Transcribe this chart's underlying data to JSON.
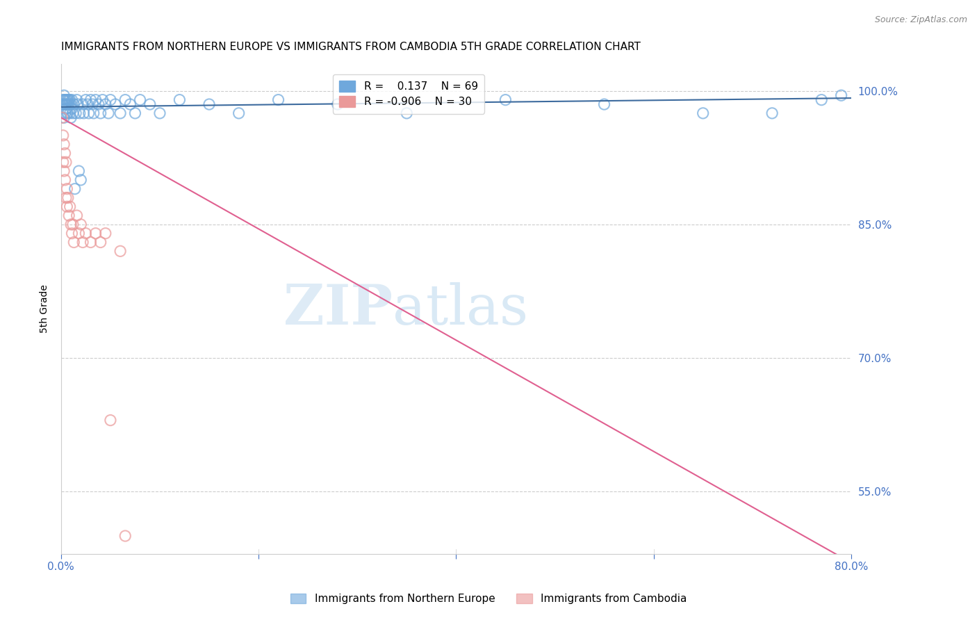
{
  "title": "IMMIGRANTS FROM NORTHERN EUROPE VS IMMIGRANTS FROM CAMBODIA 5TH GRADE CORRELATION CHART",
  "source": "Source: ZipAtlas.com",
  "ylabel": "5th Grade",
  "ytick_labels": [
    "100.0%",
    "85.0%",
    "70.0%",
    "55.0%"
  ],
  "ytick_values": [
    1.0,
    0.85,
    0.7,
    0.55
  ],
  "xmin": 0.0,
  "xmax": 0.8,
  "ymin": 0.48,
  "ymax": 1.03,
  "blue_R": 0.137,
  "blue_N": 69,
  "pink_R": -0.906,
  "pink_N": 30,
  "blue_color": "#6fa8dc",
  "pink_color": "#ea9999",
  "blue_line_color": "#3d6b9e",
  "pink_line_color": "#e06090",
  "legend_blue": "Immigrants from Northern Europe",
  "legend_pink": "Immigrants from Cambodia",
  "watermark_zip": "ZIP",
  "watermark_atlas": "atlas",
  "blue_scatter_x": [
    0.001,
    0.002,
    0.002,
    0.003,
    0.003,
    0.003,
    0.004,
    0.004,
    0.004,
    0.005,
    0.005,
    0.005,
    0.006,
    0.006,
    0.006,
    0.007,
    0.007,
    0.008,
    0.008,
    0.009,
    0.009,
    0.01,
    0.01,
    0.011,
    0.011,
    0.012,
    0.013,
    0.014,
    0.015,
    0.016,
    0.017,
    0.018,
    0.019,
    0.02,
    0.022,
    0.023,
    0.025,
    0.027,
    0.028,
    0.03,
    0.032,
    0.033,
    0.035,
    0.038,
    0.04,
    0.042,
    0.045,
    0.048,
    0.05,
    0.055,
    0.06,
    0.065,
    0.07,
    0.075,
    0.08,
    0.09,
    0.1,
    0.12,
    0.15,
    0.18,
    0.22,
    0.28,
    0.35,
    0.45,
    0.55,
    0.65,
    0.72,
    0.77,
    0.79
  ],
  "blue_scatter_y": [
    0.985,
    0.99,
    0.985,
    0.99,
    0.97,
    0.995,
    0.99,
    0.985,
    0.975,
    0.99,
    0.985,
    0.98,
    0.99,
    0.975,
    0.985,
    0.99,
    0.975,
    0.985,
    0.99,
    0.975,
    0.99,
    0.985,
    0.97,
    0.99,
    0.98,
    0.975,
    0.985,
    0.89,
    0.975,
    0.99,
    0.985,
    0.91,
    0.975,
    0.9,
    0.985,
    0.975,
    0.99,
    0.985,
    0.975,
    0.99,
    0.985,
    0.975,
    0.99,
    0.985,
    0.975,
    0.99,
    0.985,
    0.975,
    0.99,
    0.985,
    0.975,
    0.99,
    0.985,
    0.975,
    0.99,
    0.985,
    0.975,
    0.99,
    0.985,
    0.975,
    0.99,
    0.985,
    0.975,
    0.99,
    0.985,
    0.975,
    0.975,
    0.99,
    0.995
  ],
  "pink_scatter_x": [
    0.001,
    0.002,
    0.002,
    0.003,
    0.003,
    0.004,
    0.004,
    0.005,
    0.005,
    0.006,
    0.006,
    0.007,
    0.008,
    0.009,
    0.01,
    0.011,
    0.012,
    0.013,
    0.016,
    0.018,
    0.02,
    0.022,
    0.025,
    0.03,
    0.035,
    0.04,
    0.045,
    0.05,
    0.06,
    0.065
  ],
  "pink_scatter_y": [
    0.97,
    0.95,
    0.92,
    0.94,
    0.91,
    0.93,
    0.9,
    0.92,
    0.88,
    0.89,
    0.87,
    0.88,
    0.86,
    0.87,
    0.85,
    0.84,
    0.85,
    0.83,
    0.86,
    0.84,
    0.85,
    0.83,
    0.84,
    0.83,
    0.84,
    0.83,
    0.84,
    0.63,
    0.82,
    0.5
  ],
  "blue_line_x": [
    0.0,
    0.8
  ],
  "blue_line_y": [
    0.982,
    0.992
  ],
  "pink_line_x": [
    0.0,
    0.8
  ],
  "pink_line_y": [
    0.97,
    0.47
  ]
}
